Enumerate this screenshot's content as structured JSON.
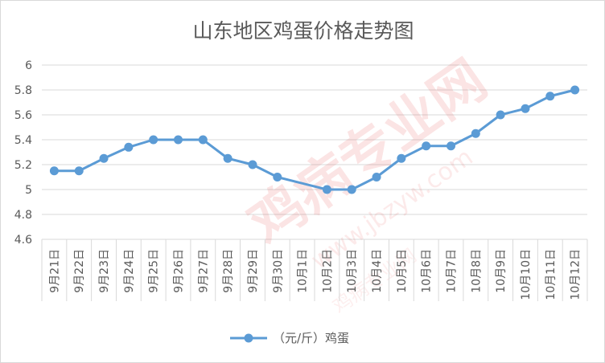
{
  "chart_data": {
    "type": "line",
    "title": "山东地区鸡蛋价格走势图",
    "categories": [
      "9月21日",
      "9月22日",
      "9月23日",
      "9月24日",
      "9月25日",
      "9月26日",
      "9月27日",
      "9月28日",
      "9月29日",
      "9月30日",
      "10月1日",
      "10月2日",
      "10月3日",
      "10月4日",
      "10月5日",
      "10月6日",
      "10月7日",
      "10月8日",
      "10月9日",
      "10月10日",
      "10月11日",
      "10月12日"
    ],
    "series": [
      {
        "name": "（元/斤）鸡蛋",
        "values": [
          5.15,
          5.15,
          5.25,
          5.34,
          5.4,
          5.4,
          5.4,
          5.25,
          5.2,
          5.1,
          null,
          5.0,
          5.0,
          5.1,
          5.25,
          5.35,
          5.35,
          5.45,
          5.6,
          5.65,
          5.75,
          5.8
        ],
        "color": "#5b9bd5"
      }
    ],
    "ylim": [
      4.6,
      6
    ],
    "yticks": [
      "4.6",
      "4.8",
      "5",
      "5.2",
      "5.4",
      "5.6",
      "5.8",
      "6"
    ],
    "grid": true,
    "legend_position": "bottom",
    "xlabel": "",
    "ylabel": ""
  },
  "watermark": {
    "main_text": "鸡病专业网",
    "url_text": "www.jbzyw.com",
    "sub_text": "鸡病专业网",
    "color": "#e03030"
  }
}
